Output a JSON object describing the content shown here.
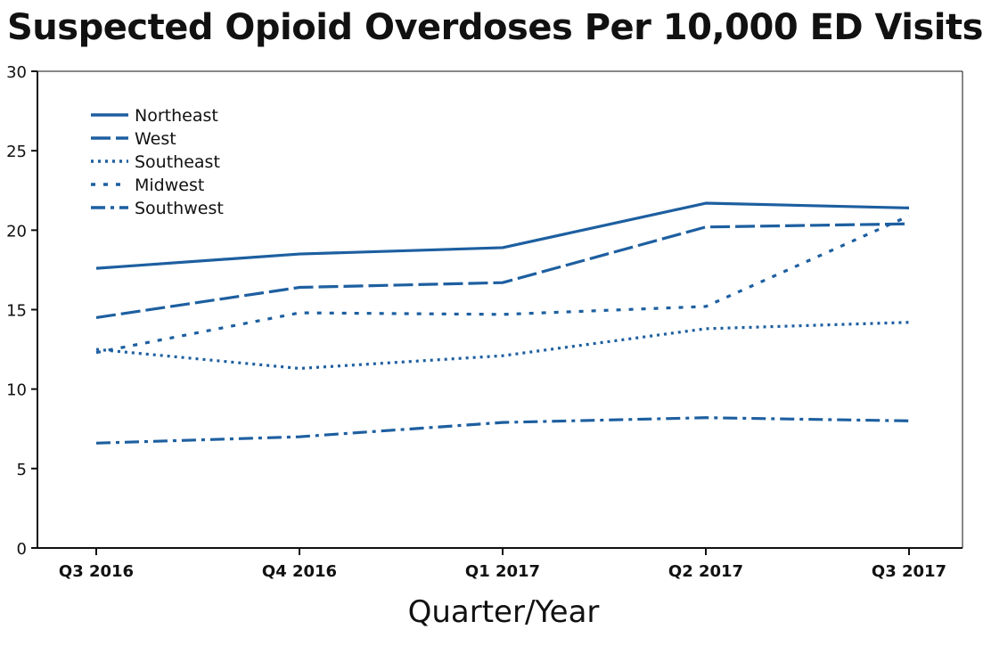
{
  "chart_data": {
    "type": "line",
    "title": "Suspected Opioid Overdoses Per 10,000 ED Visits",
    "xlabel": "Quarter/Year",
    "ylabel": "",
    "categories": [
      "Q3 2016",
      "Q4 2016",
      "Q1 2017",
      "Q2 2017",
      "Q3 2017"
    ],
    "ylim": [
      0,
      30
    ],
    "yticks": [
      0,
      5,
      10,
      15,
      20,
      25,
      30
    ],
    "grid": false,
    "legend_position": "top-left",
    "series": [
      {
        "name": "Northeast",
        "style": "solid",
        "values": [
          17.6,
          18.5,
          18.9,
          21.7,
          21.4
        ]
      },
      {
        "name": "West",
        "style": "long-dash",
        "values": [
          14.5,
          16.4,
          16.7,
          20.2,
          20.4
        ]
      },
      {
        "name": "Southeast",
        "style": "dotted",
        "values": [
          12.5,
          11.3,
          12.1,
          13.8,
          14.2
        ]
      },
      {
        "name": "Midwest",
        "style": "dotted-coarse",
        "values": [
          12.3,
          14.8,
          14.7,
          15.2,
          20.9
        ]
      },
      {
        "name": "Southwest",
        "style": "dash-dot",
        "values": [
          6.6,
          7.0,
          7.9,
          8.2,
          8.0
        ]
      }
    ],
    "colors": {
      "line": "#1d5fa0",
      "axis": "#111111"
    }
  }
}
